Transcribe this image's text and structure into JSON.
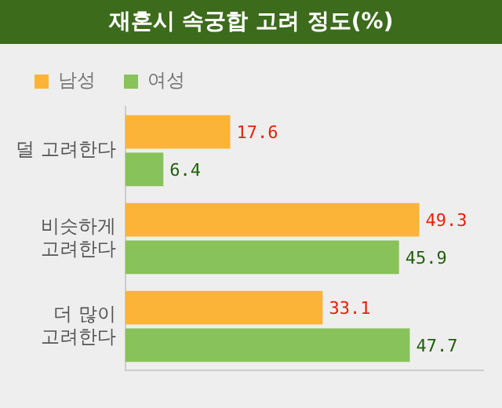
{
  "chart_data": {
    "type": "bar",
    "orientation": "horizontal",
    "title": "재혼시 속궁합 고려 정도(%)",
    "categories": [
      [
        "덜 고려한다"
      ],
      [
        "비슷하게",
        "고려한다"
      ],
      [
        "더 많이",
        "고려한다"
      ]
    ],
    "series": [
      {
        "name": "남성",
        "color": "#fbb438",
        "values": [
          17.6,
          49.3,
          33.1
        ]
      },
      {
        "name": "여성",
        "color": "#88c25a",
        "values": [
          6.4,
          45.9,
          47.7
        ]
      }
    ],
    "data_labels": true,
    "legend": "top left",
    "grid": false,
    "tick_labels": "y"
  }
}
